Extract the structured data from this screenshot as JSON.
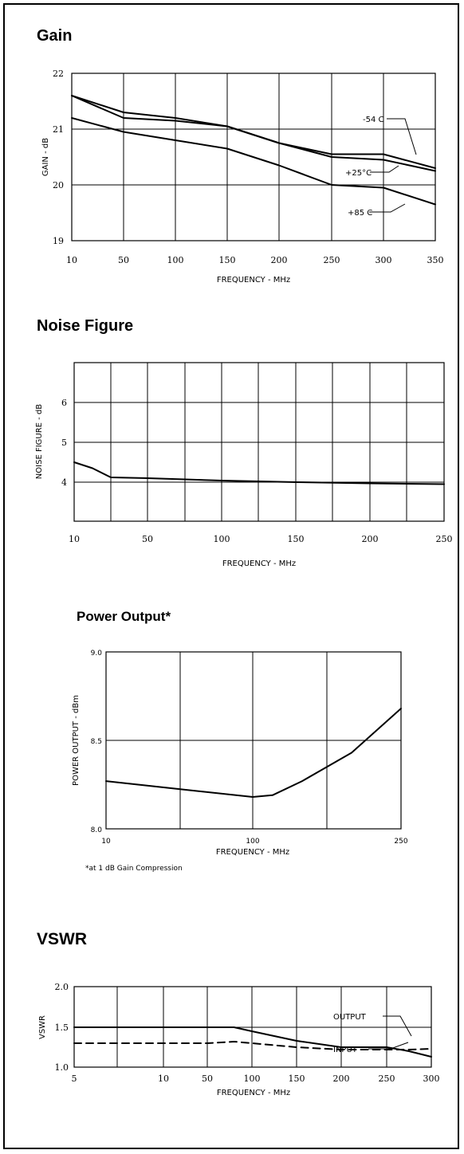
{
  "chart_data": [
    {
      "type": "line",
      "title": "Gain",
      "xlabel": "FREQUENCY - MHz",
      "ylabel": "GAIN - dB",
      "x_ticks": [
        "10",
        "50",
        "100",
        "150",
        "200",
        "250",
        "300",
        "350"
      ],
      "y_ticks": [
        "19",
        "20",
        "21",
        "22"
      ],
      "xlim": [
        10,
        350
      ],
      "ylim": [
        19,
        22
      ],
      "grid": true,
      "series": [
        {
          "name": "-54 C",
          "x": [
            10,
            50,
            100,
            150,
            200,
            250,
            300,
            350
          ],
          "y": [
            21.6,
            21.3,
            21.2,
            21.05,
            20.75,
            20.55,
            20.55,
            20.3
          ]
        },
        {
          "name": "+25°C",
          "x": [
            10,
            50,
            100,
            150,
            200,
            250,
            300,
            350
          ],
          "y": [
            21.6,
            21.2,
            21.15,
            21.05,
            20.75,
            20.5,
            20.45,
            20.25
          ]
        },
        {
          "name": "+85 C",
          "x": [
            10,
            50,
            100,
            150,
            200,
            250,
            300,
            350
          ],
          "y": [
            21.2,
            20.95,
            20.8,
            20.65,
            20.35,
            20.0,
            19.95,
            19.65
          ]
        }
      ]
    },
    {
      "type": "line",
      "title": "Noise Figure",
      "xlabel": "FREQUENCY - MHz",
      "ylabel": "NOISE FIGURE - dB",
      "x_ticks": [
        "10",
        "50",
        "100",
        "150",
        "200",
        "250"
      ],
      "y_ticks": [
        "4",
        "5",
        "6"
      ],
      "xlim": [
        10,
        250
      ],
      "ylim": [
        3,
        7
      ],
      "grid": true,
      "series": [
        {
          "x": [
            10,
            20,
            30,
            50,
            100,
            150,
            200,
            250
          ],
          "y": [
            4.5,
            4.35,
            4.12,
            4.1,
            4.04,
            4.0,
            3.97,
            3.95
          ]
        }
      ]
    },
    {
      "type": "line",
      "title": "Power Output*",
      "xlabel": "FREQUENCY - MHz",
      "ylabel": "POWER OUTPUT - dBm",
      "x_ticks": [
        "10",
        "100",
        "250"
      ],
      "y_ticks": [
        "8.0",
        "8.5",
        "9.0"
      ],
      "xlim": [
        10,
        250
      ],
      "ylim": [
        8.0,
        9.0
      ],
      "grid": true,
      "note": "*at 1 dB Gain Compression",
      "series": [
        {
          "x": [
            10,
            60,
            100,
            120,
            150,
            200,
            250
          ],
          "y": [
            8.27,
            8.22,
            8.18,
            8.19,
            8.27,
            8.43,
            8.68
          ]
        }
      ]
    },
    {
      "type": "line",
      "title": "VSWR",
      "xlabel": "FREQUENCY - MHz",
      "ylabel": "VSWR",
      "x_ticks": [
        "5",
        "10",
        "50",
        "100",
        "150",
        "200",
        "250",
        "300"
      ],
      "y_ticks": [
        "1.0",
        "1.5",
        "2.0"
      ],
      "xlim": [
        5,
        300
      ],
      "ylim": [
        1.0,
        2.0
      ],
      "grid": true,
      "series": [
        {
          "name": "OUTPUT",
          "x": [
            5,
            10,
            50,
            80,
            100,
            150,
            200,
            250,
            275,
            300
          ],
          "y": [
            1.5,
            1.5,
            1.5,
            1.5,
            1.45,
            1.33,
            1.25,
            1.25,
            1.2,
            1.13
          ]
        },
        {
          "name": "INPUT",
          "x": [
            5,
            10,
            50,
            80,
            100,
            150,
            200,
            250,
            275,
            300
          ],
          "y": [
            1.3,
            1.3,
            1.3,
            1.32,
            1.3,
            1.25,
            1.22,
            1.22,
            1.22,
            1.23
          ]
        }
      ]
    }
  ]
}
